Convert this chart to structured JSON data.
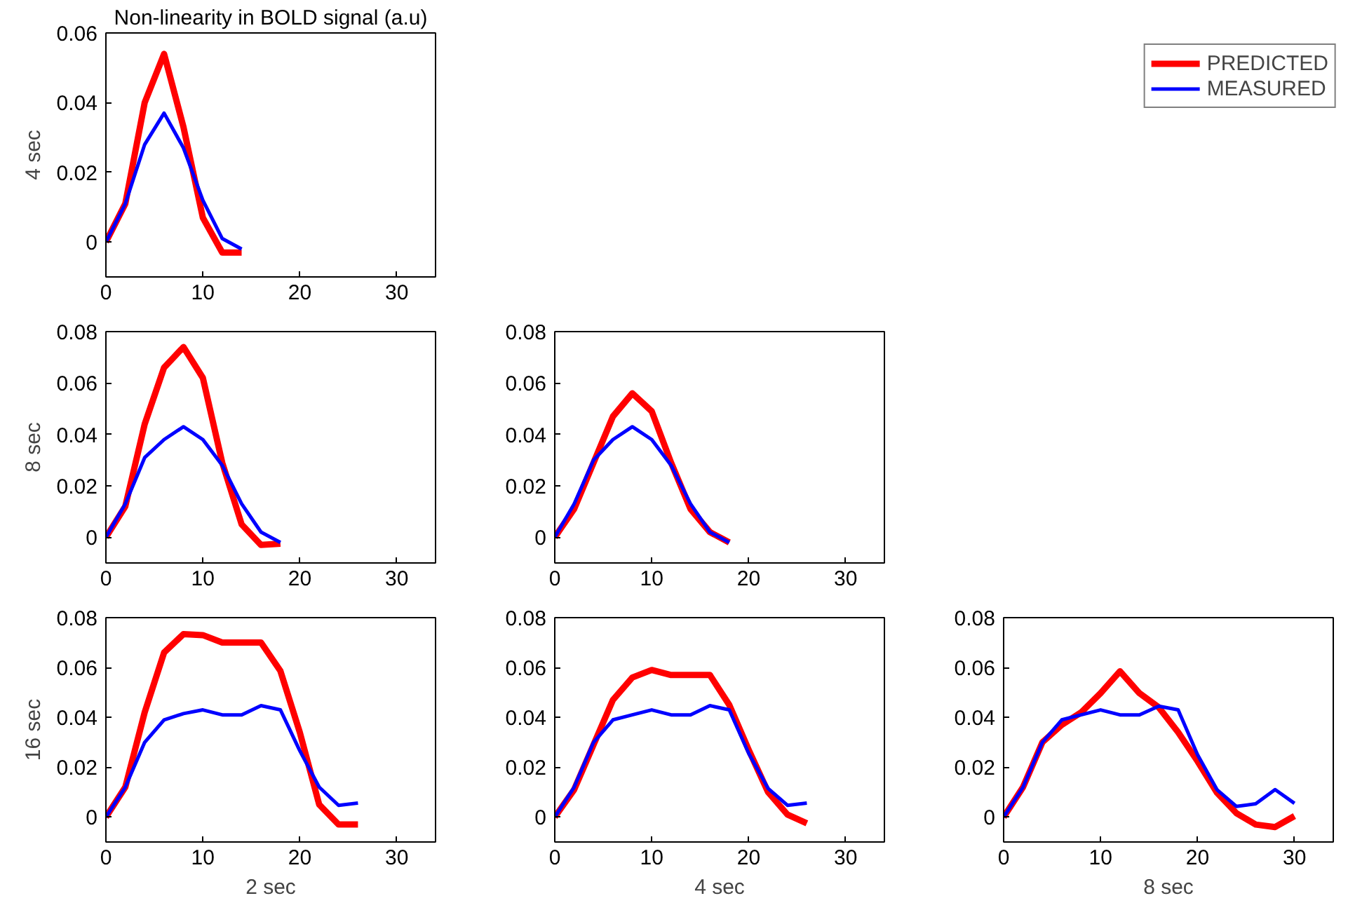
{
  "chart_data": [
    {
      "type": "line",
      "title": "Non-linearity in BOLD signal (a.u)",
      "ylabel": "4 sec",
      "legend": "right",
      "marker": "none",
      "line_style": "solid",
      "grid": false,
      "xlim": [
        0,
        34
      ],
      "ylim": [
        -0.01,
        0.06
      ],
      "xticks": [
        0,
        10,
        20,
        30
      ],
      "yticks": [
        0,
        0.02,
        0.04,
        0.06
      ],
      "x": [
        0,
        2,
        4,
        6,
        8,
        10,
        12,
        14
      ],
      "series": [
        {
          "name": "PREDICTED",
          "color": "#ff0000",
          "values": [
            0,
            0.011,
            0.04,
            0.054,
            0.033,
            0.007,
            -0.003,
            -0.003
          ]
        },
        {
          "name": "MEASURED",
          "color": "#0000ff",
          "values": [
            0,
            0.011,
            0.028,
            0.037,
            0.027,
            0.012,
            0.001,
            -0.002
          ]
        }
      ]
    },
    {
      "type": "line",
      "ylabel": "8 sec",
      "marker": "none",
      "line_style": "solid",
      "grid": false,
      "xlim": [
        0,
        34
      ],
      "ylim": [
        -0.01,
        0.08
      ],
      "xticks": [
        0,
        10,
        20,
        30
      ],
      "yticks": [
        0,
        0.02,
        0.04,
        0.06,
        0.08
      ],
      "x": [
        0,
        2,
        4,
        6,
        8,
        10,
        12,
        14,
        16,
        18
      ],
      "series": [
        {
          "color": "#ff0000",
          "values": [
            0,
            0.012,
            0.044,
            0.066,
            0.074,
            0.062,
            0.029,
            0.005,
            -0.003,
            -0.0025
          ]
        },
        {
          "color": "#0000ff",
          "values": [
            0,
            0.013,
            0.031,
            0.038,
            0.043,
            0.038,
            0.028,
            0.013,
            0.002,
            -0.002
          ]
        }
      ]
    },
    {
      "type": "line",
      "marker": "none",
      "line_style": "solid",
      "grid": false,
      "xlim": [
        0,
        34
      ],
      "ylim": [
        -0.01,
        0.08
      ],
      "xticks": [
        0,
        10,
        20,
        30
      ],
      "yticks": [
        0,
        0.02,
        0.04,
        0.06,
        0.08
      ],
      "x": [
        0,
        2,
        4,
        6,
        8,
        10,
        12,
        14,
        16,
        18
      ],
      "series": [
        {
          "color": "#ff0000",
          "values": [
            0,
            0.011,
            0.029,
            0.047,
            0.056,
            0.049,
            0.029,
            0.011,
            0.002,
            -0.002
          ]
        },
        {
          "color": "#0000ff",
          "values": [
            0,
            0.013,
            0.03,
            0.038,
            0.043,
            0.038,
            0.028,
            0.013,
            0.002,
            -0.002
          ]
        }
      ]
    },
    {
      "type": "line",
      "ylabel": "16 sec",
      "xlabel": "2 sec",
      "marker": "none",
      "line_style": "solid",
      "grid": false,
      "xlim": [
        0,
        34
      ],
      "ylim": [
        -0.01,
        0.08
      ],
      "xticks": [
        0,
        10,
        20,
        30
      ],
      "yticks": [
        0,
        0.02,
        0.04,
        0.06,
        0.08
      ],
      "x": [
        0,
        2,
        4,
        6,
        8,
        10,
        12,
        14,
        16,
        18,
        20,
        22,
        24,
        26
      ],
      "series": [
        {
          "color": "#ff0000",
          "values": [
            0,
            0.012,
            0.042,
            0.066,
            0.0734,
            0.073,
            0.07,
            0.07,
            0.07,
            0.0586,
            0.034,
            0.005,
            -0.003,
            -0.003
          ]
        },
        {
          "color": "#0000ff",
          "values": [
            0,
            0.012,
            0.03,
            0.039,
            0.0415,
            0.043,
            0.041,
            0.041,
            0.0447,
            0.043,
            0.0266,
            0.012,
            0.0047,
            0.0056
          ]
        }
      ]
    },
    {
      "type": "line",
      "xlabel": "4 sec",
      "marker": "none",
      "line_style": "solid",
      "grid": false,
      "xlim": [
        0,
        34
      ],
      "ylim": [
        -0.01,
        0.08
      ],
      "xticks": [
        0,
        10,
        20,
        30
      ],
      "yticks": [
        0,
        0.02,
        0.04,
        0.06,
        0.08
      ],
      "x": [
        0,
        2,
        4,
        6,
        8,
        10,
        12,
        14,
        16,
        18,
        20,
        22,
        24,
        26
      ],
      "series": [
        {
          "color": "#ff0000",
          "values": [
            0,
            0.011,
            0.029,
            0.047,
            0.056,
            0.059,
            0.057,
            0.057,
            0.057,
            0.045,
            0.027,
            0.01,
            0.001,
            -0.0025
          ]
        },
        {
          "color": "#0000ff",
          "values": [
            0,
            0.012,
            0.03,
            0.039,
            0.041,
            0.043,
            0.041,
            0.041,
            0.0447,
            0.043,
            0.0256,
            0.0115,
            0.0047,
            0.0056
          ]
        }
      ]
    },
    {
      "type": "line",
      "xlabel": "8 sec",
      "marker": "none",
      "line_style": "solid",
      "grid": false,
      "xlim": [
        0,
        34
      ],
      "ylim": [
        -0.01,
        0.08
      ],
      "xticks": [
        0,
        10,
        20,
        30
      ],
      "yticks": [
        0,
        0.02,
        0.04,
        0.06,
        0.08
      ],
      "x": [
        0,
        2,
        4,
        6,
        8,
        10,
        12,
        14,
        16,
        18,
        20,
        22,
        24,
        26,
        28,
        30
      ],
      "series": [
        {
          "color": "#ff0000",
          "values": [
            0,
            0.012,
            0.03,
            0.037,
            0.042,
            0.0497,
            0.0585,
            0.0497,
            0.044,
            0.034,
            0.0224,
            0.0098,
            0.0016,
            -0.003,
            -0.004,
            0.0004
          ]
        },
        {
          "color": "#0000ff",
          "values": [
            0,
            0.012,
            0.03,
            0.039,
            0.041,
            0.043,
            0.041,
            0.041,
            0.0445,
            0.043,
            0.025,
            0.011,
            0.0043,
            0.0053,
            0.011,
            0.0055
          ]
        }
      ]
    }
  ]
}
